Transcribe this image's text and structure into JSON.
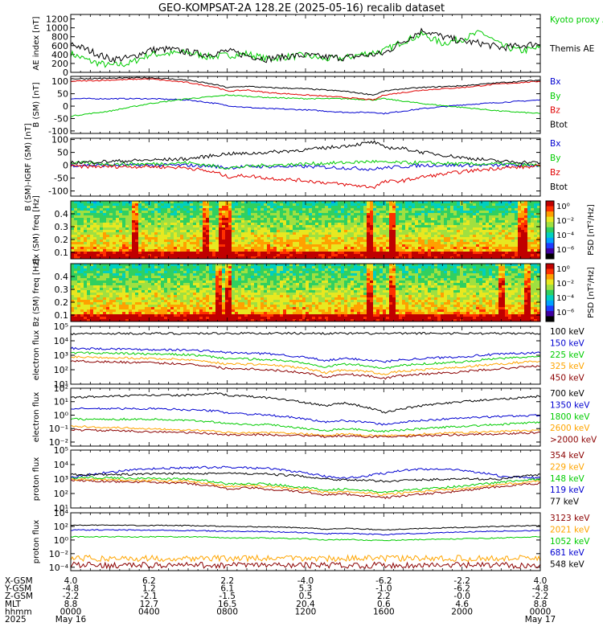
{
  "title": "GEO-KOMPSAT-2A 128.2E (2025-05-16) recalib dataset",
  "colors": {
    "black": "#000000",
    "blue": "#0000d0",
    "green": "#00cc00",
    "red": "#e00000",
    "orange": "#ffa500",
    "darkred": "#8b0000"
  },
  "time_axis": {
    "major_ticks": [
      "0000",
      "0400",
      "0800",
      "1200",
      "1600",
      "2000",
      "0000"
    ],
    "rows": [
      {
        "label": "X-GSM",
        "values": [
          "4.0",
          "6.2",
          "2.2",
          "-4.0",
          "-6.2",
          "-2.2",
          "4.0"
        ]
      },
      {
        "label": "Y-GSM",
        "values": [
          "-4.8",
          "1.2",
          "6.1",
          "5.3",
          "-1.0",
          "-6.2",
          "-4.8"
        ]
      },
      {
        "label": "Z-GSM",
        "values": [
          "-2.2",
          "-2.1",
          "-1.5",
          "0.5",
          "2.2",
          "-0.0",
          "-2.2"
        ]
      },
      {
        "label": "MLT",
        "values": [
          "8.8",
          "12.7",
          "16.5",
          "20.4",
          "0.6",
          "4.6",
          "8.8"
        ]
      },
      {
        "label": "hhmm",
        "values": [
          "0000",
          "0400",
          "0800",
          "1200",
          "1600",
          "2000",
          "0000"
        ]
      },
      {
        "label": "2025",
        "values": [
          "May 16",
          "",
          "",
          "",
          "",
          "",
          "May 17"
        ]
      }
    ]
  },
  "chart_data": [
    {
      "type": "line",
      "panel": "ae",
      "ylabel": "AE index [nT]",
      "yticks": [
        "0",
        "200",
        "400",
        "600",
        "800",
        "1000",
        "1200"
      ],
      "ylim": [
        0,
        1300
      ],
      "x_hours": [
        0,
        1,
        2,
        3,
        4,
        5,
        6,
        7,
        8,
        9,
        10,
        11,
        12,
        13,
        14,
        15,
        16,
        17,
        18,
        19,
        20,
        21,
        22,
        23,
        24
      ],
      "series": [
        {
          "name": "Kyoto proxy AE",
          "color": "green",
          "values": [
            420,
            250,
            150,
            200,
            400,
            420,
            450,
            350,
            380,
            420,
            300,
            350,
            380,
            300,
            320,
            420,
            480,
            700,
            850,
            650,
            750,
            900,
            600,
            480,
            550
          ]
        },
        {
          "name": "Themis AE",
          "color": "black",
          "values": [
            650,
            480,
            300,
            320,
            500,
            520,
            450,
            400,
            480,
            380,
            300,
            360,
            380,
            340,
            330,
            380,
            420,
            700,
            950,
            800,
            700,
            650,
            550,
            600,
            650
          ]
        }
      ]
    },
    {
      "type": "line",
      "panel": "bsm",
      "ylabel": "B (SM) [nT]",
      "yticks": [
        "-100",
        "-50",
        "0",
        "50",
        "100"
      ],
      "ylim": [
        -110,
        120
      ],
      "x_hours": [
        0,
        2,
        4,
        6,
        7.5,
        8,
        9,
        10,
        12,
        14,
        15.5,
        16,
        17,
        18,
        20,
        22,
        24
      ],
      "series": [
        {
          "name": "Bx",
          "color": "blue",
          "values": [
            30,
            30,
            30,
            25,
            10,
            2,
            -5,
            -10,
            -15,
            -25,
            -25,
            -30,
            -20,
            -10,
            5,
            15,
            25
          ]
        },
        {
          "name": "By",
          "color": "green",
          "values": [
            -40,
            -20,
            10,
            30,
            40,
            45,
            40,
            35,
            30,
            30,
            25,
            30,
            20,
            10,
            -5,
            -20,
            -30
          ]
        },
        {
          "name": "Bz",
          "color": "red",
          "values": [
            100,
            105,
            110,
            95,
            75,
            60,
            65,
            55,
            45,
            35,
            25,
            45,
            55,
            65,
            75,
            90,
            100
          ]
        },
        {
          "name": "Btot",
          "color": "black",
          "values": [
            110,
            112,
            115,
            105,
            85,
            75,
            80,
            75,
            70,
            60,
            45,
            60,
            70,
            75,
            82,
            95,
            105
          ]
        }
      ]
    },
    {
      "type": "line",
      "panel": "bdiff",
      "ylabel": "B (SM)-IGRF (SM) [nT]",
      "yticks": [
        "-100",
        "-50",
        "0",
        "50",
        "100"
      ],
      "ylim": [
        -120,
        105
      ],
      "x_hours": [
        0,
        2,
        4,
        6,
        7.5,
        8,
        9,
        10,
        12,
        14,
        15.5,
        16,
        17,
        18,
        20,
        22,
        24
      ],
      "series": [
        {
          "name": "Bx",
          "color": "blue",
          "values": [
            0,
            0,
            0,
            0,
            -5,
            -10,
            -5,
            -5,
            -5,
            -10,
            -15,
            -10,
            -5,
            0,
            0,
            0,
            0
          ]
        },
        {
          "name": "By",
          "color": "green",
          "values": [
            10,
            5,
            5,
            10,
            -5,
            -10,
            -5,
            0,
            5,
            10,
            15,
            10,
            10,
            10,
            5,
            5,
            0
          ]
        },
        {
          "name": "Bz",
          "color": "red",
          "values": [
            -5,
            -5,
            -5,
            -10,
            -30,
            -45,
            -40,
            -50,
            -60,
            -75,
            -85,
            -65,
            -60,
            -45,
            -25,
            -10,
            -5
          ]
        },
        {
          "name": "Btot",
          "color": "black",
          "values": [
            10,
            15,
            20,
            25,
            40,
            45,
            45,
            50,
            60,
            75,
            90,
            70,
            65,
            50,
            30,
            15,
            10
          ]
        }
      ]
    },
    {
      "type": "heatmap",
      "panel": "spec_bx",
      "ylabel": "Bx (SM) freq [Hz]",
      "yticks": [
        "0.1",
        "0.2",
        "0.3",
        "0.4"
      ],
      "ylim": [
        0.05,
        0.5
      ],
      "colorbar": {
        "label": "PSD [nT²/Hz]",
        "ticks": [
          "10⁰",
          "10⁻²",
          "10⁻⁴",
          "10⁻⁶"
        ]
      },
      "bursts_hours": [
        3.2,
        6.8,
        7.6,
        8.0,
        15.2,
        16.4,
        23.0
      ]
    },
    {
      "type": "heatmap",
      "panel": "spec_bz",
      "ylabel": "Bz (SM) freq [Hz]",
      "yticks": [
        "0.1",
        "0.2",
        "0.3",
        "0.4"
      ],
      "ylim": [
        0.05,
        0.5
      ],
      "colorbar": {
        "label": "PSD [nT²/Hz]",
        "ticks": [
          "10⁰",
          "10⁻²",
          "10⁻⁴",
          "10⁻⁶"
        ]
      },
      "bursts_hours": [
        7.5,
        8.0,
        15.2,
        16.4,
        22.0,
        23.2
      ]
    },
    {
      "type": "line",
      "panel": "e_low",
      "log": true,
      "ylabel": "electron flux",
      "yticks": [
        "10¹",
        "10²",
        "10³",
        "10⁴",
        "10⁵"
      ],
      "ylim_exp": [
        1,
        5
      ],
      "x_hours": [
        0,
        2,
        4,
        6,
        7.5,
        8,
        9,
        10,
        12,
        13,
        14,
        15,
        16,
        17,
        18,
        20,
        22,
        24
      ],
      "series": [
        {
          "name": "100 keV",
          "color": "black",
          "values": [
            30000,
            32000,
            32000,
            32000,
            33000,
            33000,
            33000,
            33000,
            33000,
            33000,
            32000,
            32000,
            32000,
            32000,
            33000,
            33000,
            32000,
            33000
          ]
        },
        {
          "name": "150 keV",
          "color": "blue",
          "values": [
            3000,
            2800,
            2500,
            2300,
            1800,
            1500,
            1400,
            1300,
            700,
            400,
            600,
            500,
            350,
            500,
            600,
            800,
            1200,
            1500
          ]
        },
        {
          "name": "225 keV",
          "color": "green",
          "values": [
            1500,
            1400,
            1200,
            1100,
            700,
            600,
            550,
            500,
            300,
            150,
            250,
            200,
            120,
            200,
            250,
            350,
            600,
            800
          ]
        },
        {
          "name": "325 keV",
          "color": "orange",
          "values": [
            800,
            700,
            600,
            500,
            300,
            250,
            250,
            220,
            120,
            60,
            100,
            80,
            50,
            80,
            100,
            150,
            250,
            400
          ]
        },
        {
          "name": "450 keV",
          "color": "darkred",
          "values": [
            400,
            350,
            300,
            250,
            150,
            120,
            120,
            100,
            60,
            30,
            50,
            40,
            25,
            40,
            50,
            70,
            120,
            180
          ]
        }
      ]
    },
    {
      "type": "line",
      "panel": "e_high",
      "log": true,
      "ylabel": "electron flux",
      "yticks": [
        "10⁻²",
        "10⁻¹",
        "10⁰",
        "10¹",
        "10²"
      ],
      "ylim_exp": [
        -2.3,
        2
      ],
      "x_hours": [
        0,
        2,
        4,
        6,
        7.5,
        8,
        9,
        10,
        12,
        13,
        14,
        15,
        16,
        17,
        18,
        20,
        22,
        24
      ],
      "series": [
        {
          "name": "700 keV",
          "color": "black",
          "values": [
            20,
            25,
            30,
            30,
            40,
            30,
            25,
            20,
            8,
            5,
            8,
            4,
            1.5,
            3,
            5,
            10,
            15,
            25
          ]
        },
        {
          "name": "1350 keV",
          "color": "blue",
          "values": [
            3,
            3,
            3,
            2.5,
            2,
            1.5,
            1.2,
            1,
            0.5,
            0.3,
            0.4,
            0.3,
            0.2,
            0.3,
            0.4,
            0.6,
            0.8,
            1
          ]
        },
        {
          "name": "1800 keV",
          "color": "green",
          "values": [
            0.5,
            0.5,
            0.5,
            0.4,
            0.3,
            0.25,
            0.2,
            0.2,
            0.1,
            0.07,
            0.1,
            0.08,
            0.06,
            0.08,
            0.1,
            0.15,
            0.2,
            0.3
          ]
        },
        {
          "name": "2600 keV",
          "color": "orange",
          "values": [
            0.15,
            0.12,
            0.1,
            0.08,
            0.06,
            0.05,
            0.05,
            0.05,
            0.04,
            0.03,
            0.04,
            0.03,
            0.03,
            0.03,
            0.04,
            0.05,
            0.06,
            0.08
          ]
        },
        {
          "name": ">2000 keV",
          "color": "darkred",
          "values": [
            0.08,
            0.07,
            0.06,
            0.05,
            0.04,
            0.035,
            0.035,
            0.035,
            0.03,
            0.025,
            0.03,
            0.025,
            0.025,
            0.025,
            0.03,
            0.035,
            0.04,
            0.05
          ]
        }
      ]
    },
    {
      "type": "line",
      "panel": "p_low",
      "log": true,
      "ylabel": "proton flux",
      "yticks": [
        "10¹",
        "10²",
        "10³",
        "10⁴",
        "10⁵"
      ],
      "ylim_exp": [
        1,
        5
      ],
      "x_hours": [
        0,
        2,
        4,
        6,
        7.5,
        8,
        9,
        10,
        12,
        13,
        14,
        15,
        16,
        17,
        18,
        20,
        22,
        24
      ],
      "series": [
        {
          "name": "354 keV",
          "color": "darkred",
          "values": [
            800,
            700,
            600,
            500,
            300,
            200,
            250,
            200,
            120,
            80,
            90,
            70,
            50,
            70,
            90,
            150,
            300,
            500
          ]
        },
        {
          "name": "229 keV",
          "color": "orange",
          "values": [
            1000,
            900,
            800,
            700,
            400,
            300,
            350,
            300,
            180,
            120,
            130,
            110,
            80,
            110,
            140,
            220,
            400,
            700
          ]
        },
        {
          "name": "148 keV",
          "color": "green",
          "values": [
            1300,
            1200,
            1100,
            1000,
            600,
            450,
            500,
            450,
            250,
            180,
            200,
            160,
            120,
            160,
            200,
            320,
            600,
            1000
          ]
        },
        {
          "name": "119 keV",
          "color": "blue",
          "values": [
            1200,
            3000,
            5000,
            6000,
            6500,
            6500,
            6000,
            5500,
            2500,
            1500,
            1200,
            1500,
            2500,
            4000,
            5000,
            4000,
            1500,
            1200
          ]
        },
        {
          "name": "77 keV",
          "color": "black",
          "values": [
            2000,
            2000,
            2200,
            2500,
            2500,
            2500,
            2300,
            2200,
            1500,
            1000,
            900,
            800,
            700,
            800,
            900,
            1000,
            1000,
            2000
          ]
        }
      ]
    },
    {
      "type": "line",
      "panel": "p_high",
      "log": true,
      "ylabel": "proton flux",
      "yticks": [
        "10⁻⁴",
        "10⁻²",
        "10⁰",
        "10²",
        "10⁴"
      ],
      "ylim_exp": [
        -4.5,
        4
      ],
      "x_hours": [
        0,
        2,
        4,
        6,
        7.5,
        8,
        9,
        10,
        12,
        13,
        14,
        15,
        16,
        17,
        18,
        20,
        22,
        24
      ],
      "series": [
        {
          "name": "3123 keV",
          "color": "darkred",
          "values": [
            0.0002,
            0.0002,
            0.0002,
            0.0002,
            0.0002,
            0.0002,
            0.0002,
            0.0002,
            0.0002,
            0.0002,
            0.0002,
            0.0002,
            0.0002,
            0.0002,
            0.0002,
            0.0002,
            0.0002,
            0.0002
          ]
        },
        {
          "name": "2021 keV",
          "color": "orange",
          "values": [
            0.002,
            0.002,
            0.002,
            0.002,
            0.002,
            0.002,
            0.002,
            0.002,
            0.002,
            0.002,
            0.002,
            0.002,
            0.002,
            0.002,
            0.002,
            0.002,
            0.002,
            0.002
          ]
        },
        {
          "name": "1052 keV",
          "color": "green",
          "values": [
            3,
            3,
            3,
            3,
            2.5,
            2,
            2,
            2,
            1.5,
            1,
            1.2,
            1,
            0.8,
            1,
            1.2,
            1.5,
            2,
            3
          ]
        },
        {
          "name": "681 keV",
          "color": "blue",
          "values": [
            30,
            30,
            28,
            25,
            20,
            18,
            18,
            17,
            12,
            8,
            10,
            8,
            6,
            8,
            10,
            15,
            20,
            25
          ]
        },
        {
          "name": "548 keV",
          "color": "black",
          "values": [
            150,
            150,
            140,
            130,
            110,
            90,
            90,
            85,
            60,
            40,
            50,
            40,
            30,
            40,
            50,
            70,
            100,
            130
          ]
        }
      ]
    }
  ]
}
